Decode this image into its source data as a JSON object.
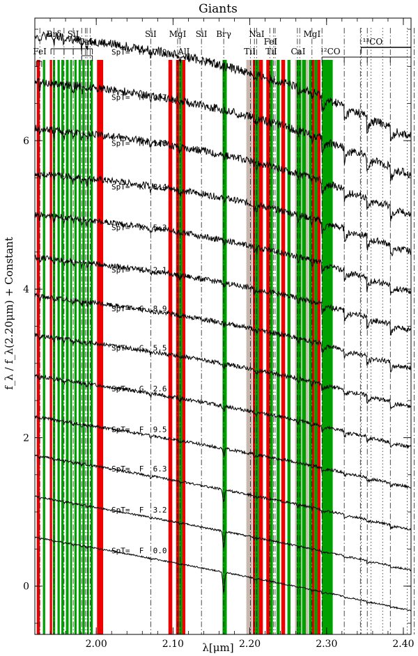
{
  "chart_data": {
    "type": "line",
    "title": "Giants",
    "xlabel": "λ[μm]",
    "ylabel": "f_λ / f_λ(2.20μm) + Constant",
    "xlim": [
      1.92,
      2.41
    ],
    "ylim": [
      -0.65,
      7.65
    ],
    "x_ticks": [
      {
        "value": 2.0,
        "label": "2.00"
      },
      {
        "value": 2.1,
        "label": "2.10"
      },
      {
        "value": 2.2,
        "label": "2.20"
      },
      {
        "value": 2.3,
        "label": "2.30"
      },
      {
        "value": 2.4,
        "label": "2.40"
      }
    ],
    "y_ticks": [
      {
        "value": 0,
        "label": "0"
      },
      {
        "value": 2,
        "label": "2"
      },
      {
        "value": 4,
        "label": "4"
      },
      {
        "value": 6,
        "label": "6"
      }
    ],
    "colors": {
      "red": "#ee0000",
      "green": "#00a000",
      "gray": "#c8b8b0"
    },
    "bands": [
      {
        "x0": 1.9225,
        "x1": 1.9265,
        "color": "red"
      },
      {
        "x0": 1.9305,
        "x1": 1.9335,
        "color": "green"
      },
      {
        "x0": 1.9395,
        "x1": 1.9425,
        "color": "red"
      },
      {
        "x0": 1.9435,
        "x1": 1.9465,
        "color": "green"
      },
      {
        "x0": 1.9495,
        "x1": 1.9525,
        "color": "green"
      },
      {
        "x0": 1.9545,
        "x1": 1.9575,
        "color": "green"
      },
      {
        "x0": 1.9605,
        "x1": 1.964,
        "color": "green"
      },
      {
        "x0": 1.966,
        "x1": 1.9685,
        "color": "green"
      },
      {
        "x0": 1.9715,
        "x1": 1.9745,
        "color": "green"
      },
      {
        "x0": 1.977,
        "x1": 1.98,
        "color": "green"
      },
      {
        "x0": 1.982,
        "x1": 1.985,
        "color": "green"
      },
      {
        "x0": 1.988,
        "x1": 1.9905,
        "color": "green"
      },
      {
        "x0": 1.9925,
        "x1": 1.9955,
        "color": "green"
      },
      {
        "x0": 2.001,
        "x1": 2.009,
        "color": "red"
      },
      {
        "x0": 2.094,
        "x1": 2.099,
        "color": "red"
      },
      {
        "x0": 2.104,
        "x1": 2.108,
        "color": "red"
      },
      {
        "x0": 2.108,
        "x1": 2.112,
        "color": "green"
      },
      {
        "x0": 2.112,
        "x1": 2.116,
        "color": "red"
      },
      {
        "x0": 2.1645,
        "x1": 2.17,
        "color": "green"
      },
      {
        "x0": 2.1955,
        "x1": 2.203,
        "color": "gray"
      },
      {
        "x0": 2.204,
        "x1": 2.207,
        "color": "red"
      },
      {
        "x0": 2.207,
        "x1": 2.212,
        "color": "green"
      },
      {
        "x0": 2.212,
        "x1": 2.217,
        "color": "red"
      },
      {
        "x0": 2.2215,
        "x1": 2.226,
        "color": "red"
      },
      {
        "x0": 2.226,
        "x1": 2.23,
        "color": "green"
      },
      {
        "x0": 2.235,
        "x1": 2.239,
        "color": "green"
      },
      {
        "x0": 2.241,
        "x1": 2.246,
        "color": "red"
      },
      {
        "x0": 2.249,
        "x1": 2.253,
        "color": "green"
      },
      {
        "x0": 2.259,
        "x1": 2.261,
        "color": "gray"
      },
      {
        "x0": 2.261,
        "x1": 2.267,
        "color": "green"
      },
      {
        "x0": 2.268,
        "x1": 2.273,
        "color": "green"
      },
      {
        "x0": 2.273,
        "x1": 2.276,
        "color": "gray"
      },
      {
        "x0": 2.277,
        "x1": 2.281,
        "color": "green"
      },
      {
        "x0": 2.281,
        "x1": 2.284,
        "color": "red"
      },
      {
        "x0": 2.284,
        "x1": 2.288,
        "color": "green"
      },
      {
        "x0": 2.288,
        "x1": 2.292,
        "color": "red"
      },
      {
        "x0": 2.294,
        "x1": 2.308,
        "color": "green"
      }
    ],
    "line_markers": [
      {
        "x": 1.9265,
        "style": "dashdot"
      },
      {
        "x": 1.945,
        "style": "dashdot"
      },
      {
        "x": 1.958,
        "style": "dashdot"
      },
      {
        "x": 1.97,
        "style": "dashdot"
      },
      {
        "x": 1.981,
        "style": "dashdot"
      },
      {
        "x": 1.986,
        "style": "dashdot"
      },
      {
        "x": 1.988,
        "style": "dashdot"
      },
      {
        "x": 1.992,
        "style": "dashdot"
      },
      {
        "x": 2.071,
        "style": "dashdot"
      },
      {
        "x": 2.106,
        "style": "dashdot"
      },
      {
        "x": 2.109,
        "style": "dashdot"
      },
      {
        "x": 2.137,
        "style": "dashdot"
      },
      {
        "x": 2.166,
        "style": "dashdot"
      },
      {
        "x": 2.201,
        "style": "dashdot"
      },
      {
        "x": 2.206,
        "style": "dashdot"
      },
      {
        "x": 2.209,
        "style": "dashdot"
      },
      {
        "x": 2.226,
        "style": "dashdot"
      },
      {
        "x": 2.231,
        "style": "dashdot"
      },
      {
        "x": 2.233,
        "style": "dashdot"
      },
      {
        "x": 2.262,
        "style": "dashdot"
      },
      {
        "x": 2.265,
        "style": "dashdot"
      },
      {
        "x": 2.281,
        "style": "dashdot"
      },
      {
        "x": 2.294,
        "style": "dashdot"
      },
      {
        "x": 2.323,
        "style": "dashdot"
      },
      {
        "x": 2.344,
        "style": "dashdot"
      },
      {
        "x": 2.353,
        "style": "dashdot"
      },
      {
        "x": 2.383,
        "style": "dashdot"
      },
      {
        "x": 2.414,
        "style": "dashdot"
      },
      {
        "x": 2.345,
        "style": "dotted"
      },
      {
        "x": 2.358,
        "style": "dotted"
      },
      {
        "x": 2.373,
        "style": "dotted"
      },
      {
        "x": 2.405,
        "style": "dotted"
      }
    ],
    "line_labels": [
      {
        "text": "FeI",
        "x": 1.9265,
        "row": 3,
        "anchor": "middle"
      },
      {
        "text": "Brδ",
        "x": 1.945,
        "row": 1,
        "anchor": "middle"
      },
      {
        "text": "SiI",
        "x": 1.97,
        "row": 1,
        "anchor": "middle"
      },
      {
        "text": "CaI",
        "x": 1.986,
        "row": 2,
        "anchor": "middle"
      },
      {
        "text": "SiI",
        "x": 2.071,
        "row": 1,
        "anchor": "middle"
      },
      {
        "text": "MgI",
        "x": 2.106,
        "row": 1,
        "anchor": "middle"
      },
      {
        "text": "AlI",
        "x": 2.114,
        "row": 3,
        "anchor": "middle"
      },
      {
        "text": "SiI",
        "x": 2.137,
        "row": 1,
        "anchor": "middle"
      },
      {
        "text": "Brγ",
        "x": 2.166,
        "row": 1,
        "anchor": "middle"
      },
      {
        "text": "TiI",
        "x": 2.2,
        "row": 3,
        "anchor": "middle"
      },
      {
        "text": "NaI",
        "x": 2.209,
        "row": 1,
        "anchor": "middle"
      },
      {
        "text": "FeI",
        "x": 2.227,
        "row": 2,
        "anchor": "middle"
      },
      {
        "text": "TiI",
        "x": 2.228,
        "row": 3,
        "anchor": "middle"
      },
      {
        "text": "CaI",
        "x": 2.263,
        "row": 3,
        "anchor": "middle"
      },
      {
        "text": "MgI",
        "x": 2.281,
        "row": 1,
        "anchor": "middle"
      },
      {
        "text": "¹²CO",
        "x": 2.305,
        "row": 3,
        "anchor": "middle"
      },
      {
        "text": "¹³CO",
        "x": 2.36,
        "row": 2,
        "anchor": "middle"
      }
    ],
    "brackets": [
      {
        "x0": 1.941,
        "x1": 1.995,
        "drop_x": [
          1.941,
          1.958,
          1.97,
          1.981,
          1.995
        ],
        "level": 0
      },
      {
        "x0": 1.981,
        "x1": 1.995,
        "drop_x": [
          1.981,
          1.995
        ],
        "level": 1
      },
      {
        "x0": 1.922,
        "x1": 1.929,
        "drop_x": [
          1.922,
          1.929
        ],
        "level": 2
      },
      {
        "x0": 2.294,
        "x1": 2.41,
        "drop_x": [
          2.294,
          2.323,
          2.353,
          2.383
        ],
        "level": 3
      },
      {
        "x0": 2.345,
        "x1": 2.41,
        "drop_x": [
          2.345
        ],
        "level": 4
      }
    ],
    "series": [
      {
        "spt": "SpT=  M  7.9",
        "offset": 6.7,
        "slope": -2.6,
        "bump": 0.22,
        "noise": 0.03,
        "co": 0.22,
        "brg": 0.02
      },
      {
        "spt": "SpT=  M  4.7",
        "offset": 6.13,
        "slope": -2.4,
        "bump": 0.2,
        "noise": 0.028,
        "co": 0.2,
        "brg": 0.02
      },
      {
        "spt": "SpT=  M  1.8",
        "offset": 5.55,
        "slope": -2.2,
        "bump": 0.18,
        "noise": 0.025,
        "co": 0.18,
        "brg": 0.02
      },
      {
        "spt": "SpT=  K  8.4",
        "offset": 5.0,
        "slope": -2.0,
        "bump": 0.16,
        "noise": 0.022,
        "co": 0.17,
        "brg": 0.02
      },
      {
        "spt": "SpT=  K  5.3",
        "offset": 4.45,
        "slope": -2.0,
        "bump": 0.14,
        "noise": 0.02,
        "co": 0.15,
        "brg": 0.03
      },
      {
        "spt": "SpT=  K  2.1",
        "offset": 3.9,
        "slope": -1.9,
        "bump": 0.12,
        "noise": 0.018,
        "co": 0.13,
        "brg": 0.03
      },
      {
        "spt": "SpT=  G  8.9",
        "offset": 3.38,
        "slope": -1.9,
        "bump": 0.1,
        "noise": 0.016,
        "co": 0.11,
        "brg": 0.04
      },
      {
        "spt": "SpT=  G  5.5",
        "offset": 2.85,
        "slope": -1.9,
        "bump": 0.08,
        "noise": 0.014,
        "co": 0.09,
        "brg": 0.05
      },
      {
        "spt": "SpT=  G  2.6",
        "offset": 2.3,
        "slope": -1.9,
        "bump": 0.06,
        "noise": 0.012,
        "co": 0.07,
        "brg": 0.06
      },
      {
        "spt": "SpT=  F  9.5",
        "offset": 1.75,
        "slope": -1.9,
        "bump": 0.04,
        "noise": 0.01,
        "co": 0.05,
        "brg": 0.1
      },
      {
        "spt": "SpT=  F  6.3",
        "offset": 1.2,
        "slope": -2.0,
        "bump": 0.03,
        "noise": 0.008,
        "co": 0.04,
        "brg": 0.16
      },
      {
        "spt": "SpT=  F  3.2",
        "offset": 0.65,
        "slope": -2.0,
        "bump": 0.02,
        "noise": 0.006,
        "co": 0.03,
        "brg": 0.22
      },
      {
        "spt": "SpT=  F  0.0",
        "offset": 0.1,
        "slope": -2.0,
        "bump": 0.02,
        "noise": 0.005,
        "co": 0.02,
        "brg": 0.28
      }
    ]
  }
}
